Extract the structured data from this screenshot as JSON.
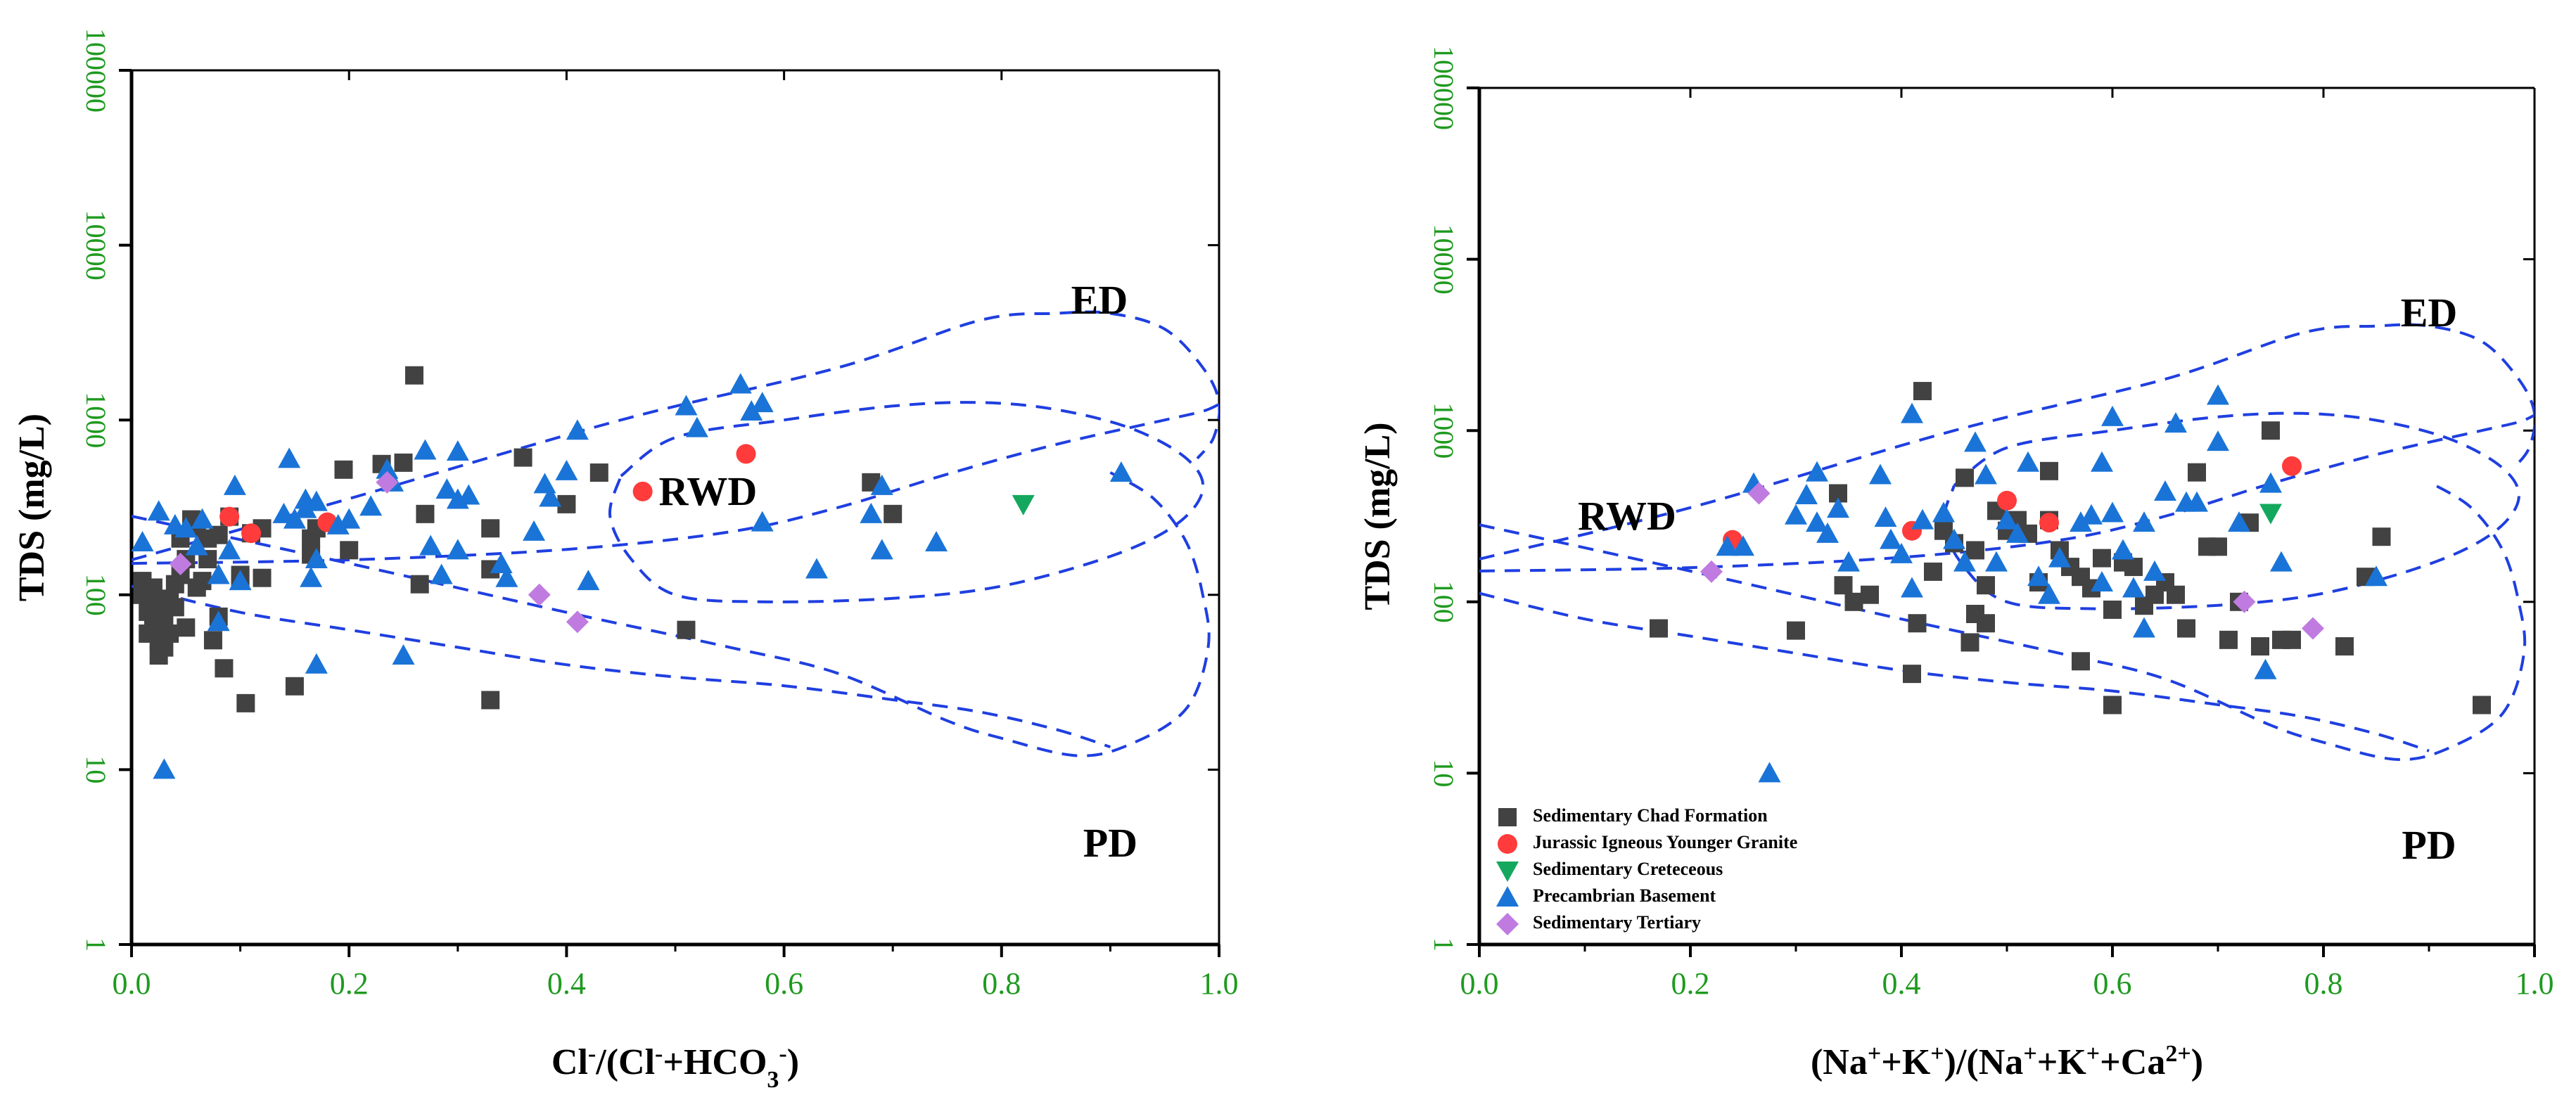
{
  "colors": {
    "axis": "#000000",
    "tick_label": "#1f9a1f",
    "curve": "#1f3fe0",
    "chad": "#424242",
    "granite": "#ff3b3b",
    "creteceous": "#14a85e",
    "precambrian": "#1a74d8",
    "tertiary": "#c07be0"
  },
  "chart_data": [
    {
      "type": "scatter",
      "title": "",
      "xlabel": "Cl⁻/(Cl⁻+HCO₃⁻)",
      "ylabel": "TDS (mg/L)",
      "xlim": [
        0,
        1
      ],
      "ylim": [
        1,
        100000
      ],
      "yscale": "log",
      "x_ticks": [
        "0.0",
        "0.2",
        "0.4",
        "0.6",
        "0.8",
        "1.0"
      ],
      "y_ticks": [
        "1",
        "10",
        "100",
        "1000",
        "10000",
        "100000"
      ],
      "annotations": [
        {
          "text": "ED",
          "x": 0.89,
          "y": 4600
        },
        {
          "text": "RWD",
          "x": 0.53,
          "y": 370
        },
        {
          "text": "PD",
          "x": 0.9,
          "y": 3.6
        }
      ],
      "series": [
        {
          "name": "Sedimentary Chad Formation",
          "marker": "square",
          "color_key": "chad",
          "points": [
            [
              0.01,
              100
            ],
            [
              0.01,
              120
            ],
            [
              0.015,
              80
            ],
            [
              0.015,
              60
            ],
            [
              0.02,
              90
            ],
            [
              0.02,
              65
            ],
            [
              0.02,
              110
            ],
            [
              0.025,
              75
            ],
            [
              0.025,
              55
            ],
            [
              0.025,
              45
            ],
            [
              0.03,
              70
            ],
            [
              0.03,
              50
            ],
            [
              0.035,
              95
            ],
            [
              0.035,
              60
            ],
            [
              0.04,
              115
            ],
            [
              0.04,
              85
            ],
            [
              0.045,
              210
            ],
            [
              0.045,
              130
            ],
            [
              0.05,
              160
            ],
            [
              0.05,
              65
            ],
            [
              0.055,
              270
            ],
            [
              0.06,
              240
            ],
            [
              0.06,
              110
            ],
            [
              0.065,
              120
            ],
            [
              0.07,
              160
            ],
            [
              0.07,
              210
            ],
            [
              0.075,
              55
            ],
            [
              0.08,
              220
            ],
            [
              0.08,
              75
            ],
            [
              0.085,
              38
            ],
            [
              0.09,
              280
            ],
            [
              0.1,
              130
            ],
            [
              0.1,
              125
            ],
            [
              0.105,
              24
            ],
            [
              0.11,
              225
            ],
            [
              0.12,
              125
            ],
            [
              0.12,
              240
            ],
            [
              0.15,
              30
            ],
            [
              0.165,
              170
            ],
            [
              0.165,
              210
            ],
            [
              0.17,
              240
            ],
            [
              0.195,
              520
            ],
            [
              0.2,
              180
            ],
            [
              0.23,
              560
            ],
            [
              0.25,
              570
            ],
            [
              0.26,
              1800
            ],
            [
              0.265,
              115
            ],
            [
              0.27,
              290
            ],
            [
              0.33,
              240
            ],
            [
              0.33,
              140
            ],
            [
              0.33,
              25
            ],
            [
              0.36,
              610
            ],
            [
              0.4,
              330
            ],
            [
              0.43,
              500
            ],
            [
              0.51,
              63
            ],
            [
              0.68,
              440
            ],
            [
              0.7,
              290
            ]
          ]
        },
        {
          "name": "Jurassic Igneous Younger Granite",
          "marker": "circle",
          "color_key": "granite",
          "points": [
            [
              0.09,
              280
            ],
            [
              0.11,
              225
            ],
            [
              0.18,
              260
            ],
            [
              0.47,
              390
            ],
            [
              0.565,
              640
            ]
          ]
        },
        {
          "name": "Sedimentary Creteceous",
          "marker": "triangle-down",
          "color_key": "creteceous",
          "points": [
            [
              0.82,
              330
            ]
          ]
        },
        {
          "name": "Precambrian Basement",
          "marker": "triangle-up",
          "color_key": "precambrian",
          "points": [
            [
              0.01,
              200
            ],
            [
              0.025,
              300
            ],
            [
              0.03,
              10
            ],
            [
              0.04,
              250
            ],
            [
              0.05,
              240
            ],
            [
              0.06,
              190
            ],
            [
              0.065,
              270
            ],
            [
              0.08,
              130
            ],
            [
              0.08,
              70
            ],
            [
              0.09,
              180
            ],
            [
              0.095,
              420
            ],
            [
              0.1,
              120
            ],
            [
              0.14,
              290
            ],
            [
              0.145,
              600
            ],
            [
              0.15,
              270
            ],
            [
              0.16,
              310
            ],
            [
              0.16,
              350
            ],
            [
              0.165,
              125
            ],
            [
              0.17,
              160
            ],
            [
              0.17,
              340
            ],
            [
              0.17,
              40
            ],
            [
              0.19,
              250
            ],
            [
              0.2,
              270
            ],
            [
              0.22,
              320
            ],
            [
              0.235,
              520
            ],
            [
              0.24,
              440
            ],
            [
              0.25,
              45
            ],
            [
              0.27,
              670
            ],
            [
              0.275,
              190
            ],
            [
              0.285,
              130
            ],
            [
              0.29,
              400
            ],
            [
              0.3,
              660
            ],
            [
              0.3,
              350
            ],
            [
              0.3,
              180
            ],
            [
              0.31,
              370
            ],
            [
              0.34,
              150
            ],
            [
              0.345,
              125
            ],
            [
              0.37,
              230
            ],
            [
              0.38,
              430
            ],
            [
              0.385,
              360
            ],
            [
              0.4,
              510
            ],
            [
              0.41,
              870
            ],
            [
              0.42,
              120
            ],
            [
              0.51,
              1200
            ],
            [
              0.52,
              900
            ],
            [
              0.56,
              1600
            ],
            [
              0.57,
              1120
            ],
            [
              0.58,
              260
            ],
            [
              0.58,
              1250
            ],
            [
              0.63,
              140
            ],
            [
              0.68,
              290
            ],
            [
              0.69,
              420
            ],
            [
              0.69,
              180
            ],
            [
              0.74,
              200
            ],
            [
              0.91,
              500
            ]
          ]
        },
        {
          "name": "Sedimentary Tertiary",
          "marker": "diamond",
          "color_key": "tertiary",
          "points": [
            [
              0.045,
              150
            ],
            [
              0.235,
              440
            ],
            [
              0.375,
              100
            ],
            [
              0.41,
              70
            ]
          ]
        }
      ]
    },
    {
      "type": "scatter",
      "title": "",
      "xlabel": "(Na⁺+K⁺)/(Na⁺+K⁺+Ca²⁺)",
      "ylabel": "TDS (mg/L)",
      "xlim": [
        0,
        1
      ],
      "ylim": [
        1,
        100000
      ],
      "yscale": "log",
      "x_ticks": [
        "0.0",
        "0.2",
        "0.4",
        "0.6",
        "0.8",
        "1.0"
      ],
      "y_ticks": [
        "1",
        "10",
        "100",
        "1000",
        "10000",
        "100000"
      ],
      "annotations": [
        {
          "text": "ED",
          "x": 0.9,
          "y": 4600
        },
        {
          "text": "RWD",
          "x": 0.14,
          "y": 300
        },
        {
          "text": "PD",
          "x": 0.9,
          "y": 3.6
        }
      ],
      "legend": {
        "placement": "bottom-left",
        "entries": [
          "Sedimentary Chad Formation",
          "Jurassic Igneous Younger Granite",
          "Sedimentary Creteceous",
          "Precambrian Basement",
          "Sedimentary Tertiary"
        ]
      },
      "series": [
        {
          "name": "Sedimentary Chad Formation",
          "marker": "square",
          "color_key": "chad",
          "points": [
            [
              0.17,
              70
            ],
            [
              0.3,
              68
            ],
            [
              0.34,
              430
            ],
            [
              0.345,
              125
            ],
            [
              0.355,
              100
            ],
            [
              0.37,
              110
            ],
            [
              0.41,
              38
            ],
            [
              0.415,
              75
            ],
            [
              0.42,
              1700
            ],
            [
              0.43,
              150
            ],
            [
              0.44,
              260
            ],
            [
              0.45,
              220
            ],
            [
              0.46,
              530
            ],
            [
              0.465,
              58
            ],
            [
              0.47,
              200
            ],
            [
              0.47,
              85
            ],
            [
              0.48,
              125
            ],
            [
              0.48,
              75
            ],
            [
              0.49,
              340
            ],
            [
              0.5,
              260
            ],
            [
              0.51,
              300
            ],
            [
              0.52,
              250
            ],
            [
              0.53,
              130
            ],
            [
              0.54,
              580
            ],
            [
              0.54,
              300
            ],
            [
              0.55,
              200
            ],
            [
              0.56,
              160
            ],
            [
              0.57,
              140
            ],
            [
              0.57,
              45
            ],
            [
              0.58,
              120
            ],
            [
              0.59,
              180
            ],
            [
              0.6,
              25
            ],
            [
              0.6,
              90
            ],
            [
              0.61,
              170
            ],
            [
              0.62,
              160
            ],
            [
              0.63,
              95
            ],
            [
              0.64,
              110
            ],
            [
              0.65,
              130
            ],
            [
              0.66,
              110
            ],
            [
              0.67,
              70
            ],
            [
              0.68,
              570
            ],
            [
              0.69,
              210
            ],
            [
              0.7,
              210
            ],
            [
              0.71,
              60
            ],
            [
              0.72,
              100
            ],
            [
              0.73,
              290
            ],
            [
              0.74,
              55
            ],
            [
              0.75,
              1000
            ],
            [
              0.76,
              60
            ],
            [
              0.77,
              60
            ],
            [
              0.82,
              55
            ],
            [
              0.84,
              140
            ],
            [
              0.855,
              240
            ],
            [
              0.95,
              25
            ]
          ]
        },
        {
          "name": "Jurassic Igneous Younger Granite",
          "marker": "circle",
          "color_key": "granite",
          "points": [
            [
              0.24,
              230
            ],
            [
              0.41,
              260
            ],
            [
              0.5,
              390
            ],
            [
              0.54,
              290
            ],
            [
              0.77,
              620
            ]
          ]
        },
        {
          "name": "Sedimentary Creteceous",
          "marker": "triangle-down",
          "color_key": "creteceous",
          "points": [
            [
              0.75,
              330
            ]
          ]
        },
        {
          "name": "Precambrian Basement",
          "marker": "triangle-up",
          "color_key": "precambrian",
          "points": [
            [
              0.235,
              210
            ],
            [
              0.25,
              210
            ],
            [
              0.26,
              490
            ],
            [
              0.275,
              10
            ],
            [
              0.3,
              320
            ],
            [
              0.31,
              420
            ],
            [
              0.32,
              570
            ],
            [
              0.32,
              290
            ],
            [
              0.33,
              250
            ],
            [
              0.34,
              350
            ],
            [
              0.35,
              170
            ],
            [
              0.38,
              550
            ],
            [
              0.385,
              310
            ],
            [
              0.39,
              230
            ],
            [
              0.4,
              190
            ],
            [
              0.41,
              1250
            ],
            [
              0.41,
              120
            ],
            [
              0.42,
              300
            ],
            [
              0.44,
              330
            ],
            [
              0.45,
              230
            ],
            [
              0.46,
              170
            ],
            [
              0.47,
              850
            ],
            [
              0.48,
              550
            ],
            [
              0.49,
              170
            ],
            [
              0.5,
              300
            ],
            [
              0.51,
              250
            ],
            [
              0.52,
              650
            ],
            [
              0.53,
              140
            ],
            [
              0.54,
              110
            ],
            [
              0.55,
              180
            ],
            [
              0.57,
              290
            ],
            [
              0.58,
              320
            ],
            [
              0.59,
              650
            ],
            [
              0.59,
              130
            ],
            [
              0.6,
              1200
            ],
            [
              0.6,
              330
            ],
            [
              0.61,
              200
            ],
            [
              0.62,
              120
            ],
            [
              0.63,
              70
            ],
            [
              0.63,
              290
            ],
            [
              0.64,
              150
            ],
            [
              0.65,
              440
            ],
            [
              0.66,
              1100
            ],
            [
              0.67,
              380
            ],
            [
              0.68,
              380
            ],
            [
              0.7,
              1600
            ],
            [
              0.7,
              860
            ],
            [
              0.72,
              290
            ],
            [
              0.745,
              40
            ],
            [
              0.75,
              490
            ],
            [
              0.76,
              170
            ],
            [
              0.85,
              140
            ]
          ]
        },
        {
          "name": "Sedimentary Tertiary",
          "marker": "diamond",
          "color_key": "tertiary",
          "points": [
            [
              0.22,
              150
            ],
            [
              0.265,
              430
            ],
            [
              0.725,
              100
            ],
            [
              0.79,
              70
            ]
          ]
        }
      ]
    }
  ]
}
